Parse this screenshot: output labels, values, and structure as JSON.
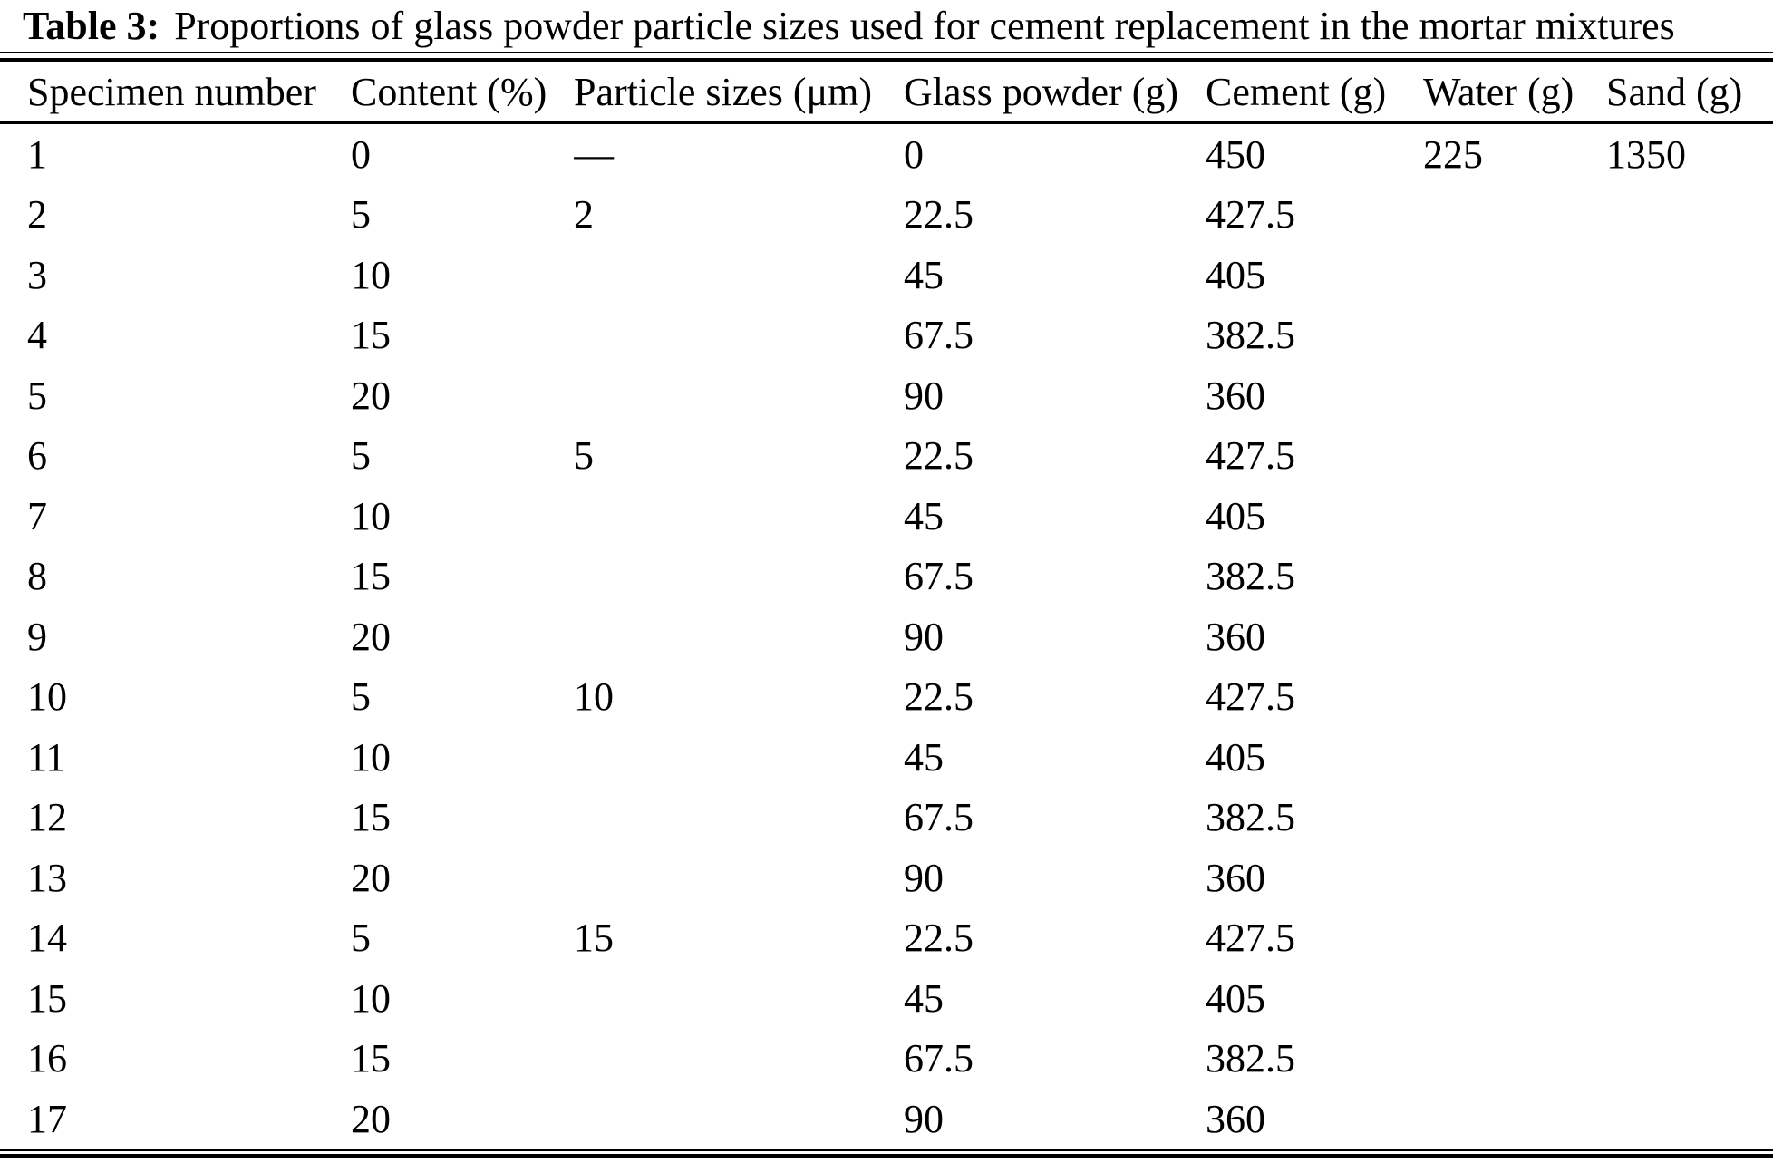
{
  "colors": {
    "background": "#ffffff",
    "text": "#000000",
    "rule": "#000000"
  },
  "table": {
    "label": "Table 3:",
    "caption": "Proportions of glass powder particle sizes used for cement replacement in the mortar mixtures",
    "columns": [
      "Specimen number",
      "Content (%)",
      "Particle sizes (μm)",
      "Glass powder (g)",
      "Cement (g)",
      "Water (g)",
      "Sand (g)"
    ],
    "rows": [
      [
        "1",
        "0",
        "—",
        "0",
        "450",
        "225",
        "1350"
      ],
      [
        "2",
        "5",
        "2",
        "22.5",
        "427.5",
        "",
        ""
      ],
      [
        "3",
        "10",
        "",
        "45",
        "405",
        "",
        ""
      ],
      [
        "4",
        "15",
        "",
        "67.5",
        "382.5",
        "",
        ""
      ],
      [
        "5",
        "20",
        "",
        "90",
        "360",
        "",
        ""
      ],
      [
        "6",
        "5",
        "5",
        "22.5",
        "427.5",
        "",
        ""
      ],
      [
        "7",
        "10",
        "",
        "45",
        "405",
        "",
        ""
      ],
      [
        "8",
        "15",
        "",
        "67.5",
        "382.5",
        "",
        ""
      ],
      [
        "9",
        "20",
        "",
        "90",
        "360",
        "",
        ""
      ],
      [
        "10",
        "5",
        "10",
        "22.5",
        "427.5",
        "",
        ""
      ],
      [
        "11",
        "10",
        "",
        "45",
        "405",
        "",
        ""
      ],
      [
        "12",
        "15",
        "",
        "67.5",
        "382.5",
        "",
        ""
      ],
      [
        "13",
        "20",
        "",
        "90",
        "360",
        "",
        ""
      ],
      [
        "14",
        "5",
        "15",
        "22.5",
        "427.5",
        "",
        ""
      ],
      [
        "15",
        "10",
        "",
        "45",
        "405",
        "",
        ""
      ],
      [
        "16",
        "15",
        "",
        "67.5",
        "382.5",
        "",
        ""
      ],
      [
        "17",
        "20",
        "",
        "90",
        "360",
        "",
        ""
      ]
    ]
  }
}
